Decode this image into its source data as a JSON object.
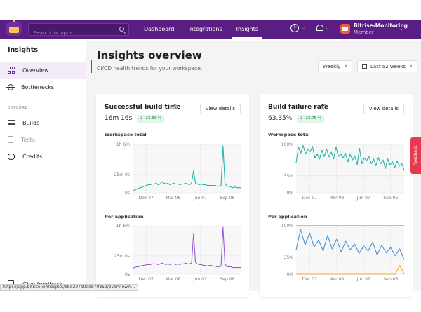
{
  "search": {
    "placeholder": "Search for apps..."
  },
  "nav": {
    "items": [
      "Dashboard",
      "Integrations",
      "Insights"
    ],
    "active": "Insights"
  },
  "org": {
    "name": "Bitrise-Monitoring",
    "role": "Member"
  },
  "sidebar": {
    "title": "Insights",
    "items": [
      {
        "label": "Overview",
        "icon": "grid-icon",
        "active": true
      },
      {
        "label": "Bottlenecks",
        "icon": "bug-icon"
      }
    ],
    "section": "EXPLORE",
    "explore": [
      {
        "label": "Builds",
        "icon": "builds-icon"
      },
      {
        "label": "Tests",
        "icon": "tests-icon",
        "disabled": true
      },
      {
        "label": "Credits",
        "icon": "credits-icon"
      }
    ],
    "feedback": "Give feedback"
  },
  "page": {
    "title": "Insights overview",
    "subtitle": "CI/CD health trends for your workspace.",
    "period": "Weekly",
    "range": "Last 52 weeks"
  },
  "cards": {
    "build_time": {
      "title": "Successful build time",
      "value": "16m 16s",
      "delta": "↓ -23.83 %",
      "button": "View details",
      "workspace_label": "Workspace total",
      "per_app_label": "Per application"
    },
    "failure_rate": {
      "title": "Build failure rate",
      "value": "63.35%",
      "delta": "↓ -22.75 %",
      "button": "View details",
      "workspace_label": "Workspace total",
      "per_app_label": "Per application"
    }
  },
  "feedback_tab": "Feedback",
  "status_url": "https://app.bitrise.io/insights/dbd227a0aeb70859/overview?i...",
  "colors": {
    "nav": "#5a1d84",
    "accent": "#7a42a8",
    "teal": "#22b5a7",
    "purple": "#9a5bd8",
    "blue": "#4a90d9",
    "orange": "#f5a623"
  },
  "chart_data": [
    {
      "type": "line",
      "title": "Workspace total",
      "x_ticks": [
        "Dec 07",
        "Mar 08",
        "Jun 07",
        "Sep 06"
      ],
      "y_ticks": [
        "0s",
        "25m 0s",
        "1h 6m"
      ],
      "ylim": [
        0,
        66
      ],
      "series": [
        {
          "color": "#22b5a7",
          "values": [
            2,
            4,
            5,
            6,
            7,
            8,
            9,
            10,
            11,
            11,
            12,
            12,
            13,
            11,
            12,
            15,
            13,
            12,
            13,
            11,
            12,
            13,
            12,
            12,
            11,
            12,
            12,
            13,
            12,
            11,
            13,
            30,
            13,
            12,
            11,
            12,
            11,
            11,
            10,
            10,
            10,
            10,
            10,
            9,
            9,
            10,
            64,
            13,
            9,
            9,
            8,
            7,
            8,
            7,
            7,
            7
          ]
        }
      ]
    },
    {
      "type": "line",
      "title": "Per application",
      "x_ticks": [
        "Dec 07",
        "Mar 08",
        "Jun 07",
        "Sep 06"
      ],
      "y_ticks": [
        "0s",
        "25m 0s",
        "1h 6m"
      ],
      "ylim": [
        0,
        66
      ],
      "series": [
        {
          "color": "#9a5bd8",
          "values": [
            8,
            9,
            10,
            10,
            11,
            12,
            12,
            13,
            13,
            13,
            14,
            14,
            14,
            13,
            14,
            15,
            14,
            13,
            14,
            13,
            14,
            14,
            13,
            14,
            13,
            14,
            14,
            15,
            14,
            14,
            15,
            55,
            16,
            14,
            13,
            13,
            12,
            12,
            11,
            12,
            12,
            11,
            11,
            10,
            10,
            11,
            64,
            14,
            10,
            10,
            10,
            9,
            9,
            9,
            9,
            9
          ]
        }
      ]
    },
    {
      "type": "line",
      "title": "Workspace total",
      "x_ticks": [
        "Dec 07",
        "Mar 08",
        "Jun 07",
        "Sep 06"
      ],
      "y_ticks": [
        "0%",
        "35%",
        "100%"
      ],
      "ylim": [
        0,
        100
      ],
      "series": [
        {
          "color": "#22b5a7",
          "values": [
            62,
            95,
            82,
            98,
            80,
            90,
            85,
            96,
            72,
            80,
            70,
            88,
            75,
            90,
            74,
            84,
            70,
            95,
            75,
            80,
            72,
            82,
            64,
            80,
            68,
            76,
            58,
            92,
            60,
            72,
            66,
            75,
            60,
            70,
            56,
            73,
            60,
            68,
            50,
            70,
            58,
            64,
            52,
            66,
            56,
            60,
            47
          ]
        }
      ]
    },
    {
      "type": "line",
      "title": "Per application",
      "x_ticks": [
        "Dec 07",
        "Mar 08",
        "Jun 07",
        "Sep 06"
      ],
      "y_ticks": [
        "0%",
        "35%",
        "100%"
      ],
      "series": [
        {
          "color": "#9a5bd8",
          "values": [
            100,
            100,
            100,
            100,
            100,
            100,
            100,
            100,
            100,
            100,
            100,
            100,
            100,
            100,
            100,
            100,
            100,
            100,
            100,
            100,
            100,
            100,
            100,
            100,
            100
          ]
        },
        {
          "color": "#4a90d9",
          "values": [
            50,
            92,
            60,
            85,
            56,
            70,
            48,
            80,
            52,
            72,
            46,
            68,
            50,
            62,
            43,
            58,
            48,
            66,
            40,
            60,
            44,
            55,
            38,
            52,
            30
          ]
        },
        {
          "color": "#f5a623",
          "values": [
            0,
            0,
            0,
            0,
            0,
            0,
            0,
            0,
            0,
            0,
            0,
            0,
            0,
            0,
            0,
            0,
            0,
            0,
            0,
            0,
            0,
            0,
            0,
            18,
            0
          ]
        }
      ],
      "ylim": [
        0,
        100
      ]
    }
  ]
}
